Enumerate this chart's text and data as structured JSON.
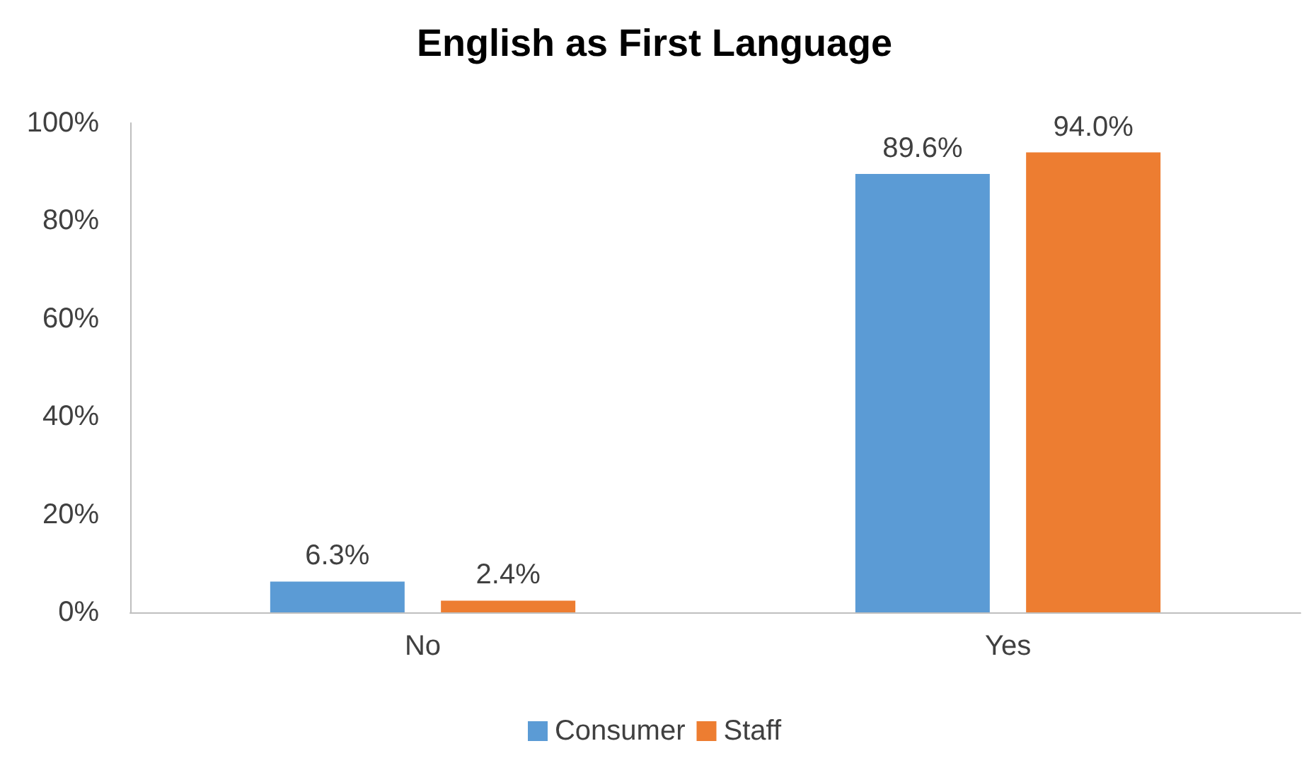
{
  "chart_data": {
    "type": "bar",
    "title": "English as First Language",
    "categories": [
      "No",
      "Yes"
    ],
    "series": [
      {
        "name": "Consumer",
        "color": "#5b9bd5",
        "values": [
          6.3,
          89.6
        ],
        "value_labels": [
          "6.3%",
          "89.6%"
        ]
      },
      {
        "name": "Staff",
        "color": "#ed7d31",
        "values": [
          2.4,
          94.0
        ],
        "value_labels": [
          "2.4%",
          "94.0%"
        ]
      }
    ],
    "ylim": [
      0,
      100
    ],
    "yticks": [
      {
        "value": 0,
        "label": "0%"
      },
      {
        "value": 20,
        "label": "20%"
      },
      {
        "value": 40,
        "label": "40%"
      },
      {
        "value": 60,
        "label": "60%"
      },
      {
        "value": 80,
        "label": "80%"
      },
      {
        "value": 100,
        "label": "100%"
      }
    ],
    "grid": false,
    "legend": "bottom"
  }
}
